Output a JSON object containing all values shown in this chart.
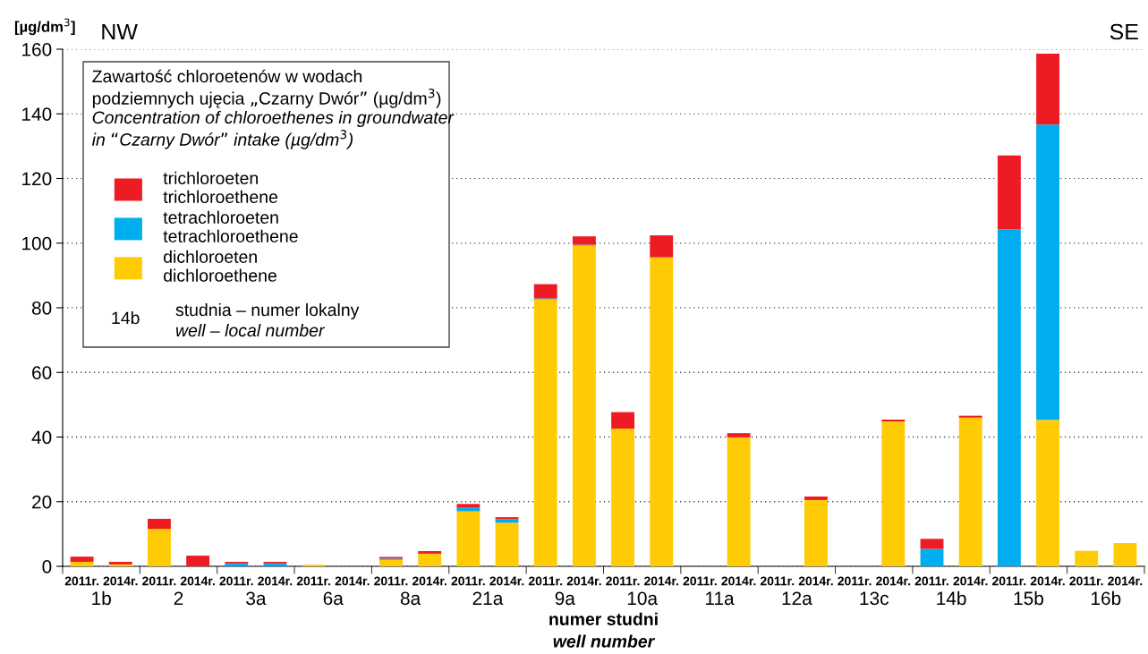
{
  "chart_data": {
    "type": "bar",
    "stacked": true,
    "ylabel": "[µg/dm$^{3}$]",
    "xlabel": "numer studni\nwell number",
    "legend_title": "Zawartość chloroetenów w wodach\npodziemnych ujęcia „Czarny Dwór” (µg/dm$^{3}$)\nConcentration of chloroethenes in groundwater\nin “Czarny Dwór” intake (µg/dm$^{3}$)",
    "categories": [
      "2011r.",
      "2014r.",
      "2011r.",
      "2014r.",
      "2011r.",
      "2014r.",
      "2011r.",
      "2014r.",
      "2011r.",
      "2014r.",
      "2011r.",
      "2014r.",
      "2011r.",
      "2014r.",
      "2011r.",
      "2014r.",
      "2011r.",
      "2014r.",
      "2011r.",
      "2014r.",
      "2011r.",
      "2014r.",
      "2011r.",
      "2014r.",
      "2011r.",
      "2014r.",
      "2011r.",
      "2014r."
    ],
    "series": [
      {
        "name": "dichloroeten\ndichloroethene",
        "color": "#ffcb05",
        "values": [
          1.4,
          0.6,
          11.6,
          0,
          0,
          0,
          0.5,
          0,
          2.0,
          3.9,
          17.0,
          13.5,
          82.6,
          99.2,
          42.6,
          95.6,
          0,
          39.9,
          0,
          20.5,
          0,
          44.8,
          0,
          46.0,
          0,
          45.3,
          4.8,
          7.2
        ]
      },
      {
        "name": "tetrachloroeten\ntetrachloroethene",
        "color": "#00aeef",
        "values": [
          0,
          0,
          0,
          0,
          0.9,
          0.9,
          0,
          0,
          0.4,
          0,
          1.1,
          1.1,
          0.3,
          0.3,
          0,
          0,
          0,
          0,
          0,
          0,
          0,
          0,
          5.4,
          0,
          104.2,
          91.4,
          0,
          0
        ]
      },
      {
        "name": "trichloroeten\ntrichloroethene",
        "color": "#ed1c24",
        "values": [
          1.6,
          0.8,
          3.1,
          3.3,
          0.5,
          0.5,
          0,
          0,
          0.5,
          0.8,
          1.2,
          0.6,
          4.4,
          2.6,
          5.1,
          6.8,
          0,
          1.3,
          0,
          1.1,
          0,
          0.6,
          3.1,
          0.6,
          22.9,
          21.9,
          0,
          0
        ]
      }
    ],
    "ylim": [
      0,
      160
    ],
    "yticks": [
      0,
      20,
      40,
      60,
      80,
      100,
      120,
      140,
      160
    ],
    "grid": "y",
    "legend": "top left",
    "annotations": [
      "1b",
      "2",
      "3a",
      "6a",
      "8a",
      "21a",
      "9a",
      "10a",
      "11a",
      "12a",
      "13c",
      "14b",
      "15b",
      "16b",
      "NW",
      "SE",
      "14b",
      "studnia – numer lokalny\nwell – local number"
    ]
  }
}
